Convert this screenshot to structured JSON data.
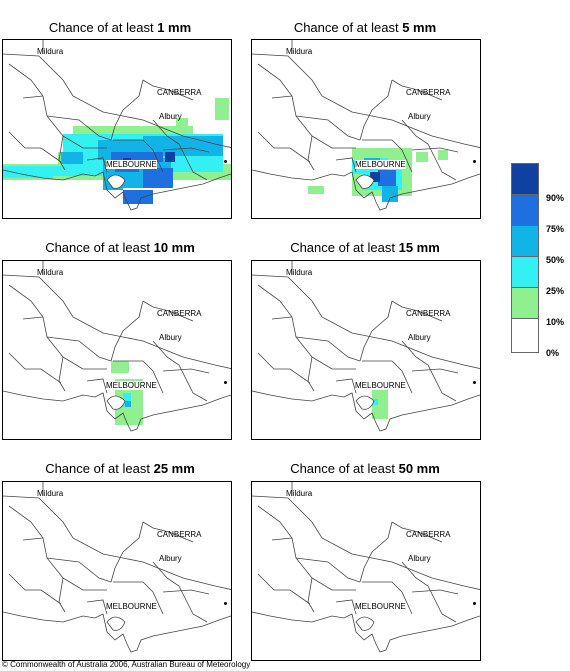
{
  "panels": [
    {
      "prefix": "Chance of at least ",
      "amount": "1 mm"
    },
    {
      "prefix": "Chance of at least ",
      "amount": "5 mm"
    },
    {
      "prefix": "Chance of at least ",
      "amount": "10 mm"
    },
    {
      "prefix": "Chance of at least ",
      "amount": "15 mm"
    },
    {
      "prefix": "Chance of at least ",
      "amount": "25 mm"
    },
    {
      "prefix": "Chance of at least ",
      "amount": "50 mm"
    }
  ],
  "cities": {
    "mildura": "Mildura",
    "canberra": "CANBERRA",
    "albury": "Albury",
    "melbourne": "MELBOURNE"
  },
  "legend": {
    "labels": [
      "90%",
      "75%",
      "50%",
      "25%",
      "10%",
      "0%"
    ],
    "colors": [
      "#1040a0",
      "#1e6fe0",
      "#12b4e8",
      "#33f0f2",
      "#90f090",
      "#ffffff"
    ]
  },
  "footer": "© Commonwealth of Australia 2006, Australian Bureau of Meteorology"
}
